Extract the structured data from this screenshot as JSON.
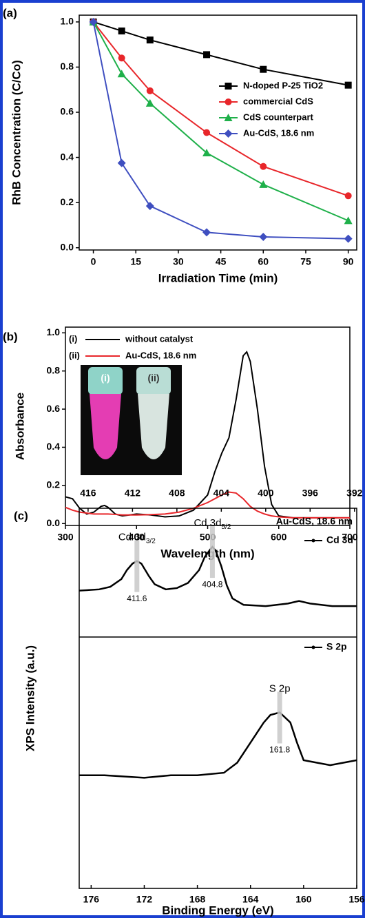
{
  "chart_data": [
    {
      "type": "line",
      "panel_label": "(a)",
      "x_label": "Irradiation Time (min)",
      "y_label": "RhB Concentration (C/Co)",
      "x": [
        0,
        10,
        20,
        40,
        60,
        90
      ],
      "xlim": [
        -5,
        93
      ],
      "xticks": [
        0,
        15,
        30,
        45,
        60,
        75,
        90
      ],
      "ylim": [
        -0.01,
        1.03
      ],
      "yticks": [
        {
          "value": 0,
          "label": "0.0"
        },
        0.2,
        0.4,
        0.6,
        0.8,
        {
          "value": 1,
          "label": "1.0"
        }
      ],
      "legend": "right",
      "series": [
        {
          "name": "N-doped P-25 TiO2",
          "color": "#000000",
          "marker": "square",
          "values": [
            1.0,
            0.96,
            0.92,
            0.855,
            0.79,
            0.72
          ]
        },
        {
          "name": "commercial CdS",
          "color": "#e8262a",
          "marker": "circle",
          "values": [
            1.0,
            0.84,
            0.695,
            0.51,
            0.36,
            0.23
          ]
        },
        {
          "name": "CdS counterpart",
          "color": "#1fb04a",
          "marker": "triangle",
          "values": [
            1.0,
            0.77,
            0.64,
            0.42,
            0.28,
            0.12
          ]
        },
        {
          "name": "Au-CdS, 18.6 nm",
          "color": "#3f4fc0",
          "marker": "diamond",
          "values": [
            1.0,
            0.375,
            0.185,
            0.068,
            0.048,
            0.04
          ]
        }
      ]
    },
    {
      "type": "line",
      "panel_label": "(b)",
      "x_label": "Wavelength (nm)",
      "y_label": "Absorbance",
      "x": [
        300,
        310,
        320,
        330,
        340,
        350,
        355,
        360,
        370,
        380,
        400,
        420,
        440,
        460,
        480,
        500,
        510,
        520,
        530,
        540,
        550,
        555,
        560,
        570,
        580,
        590,
        600,
        620,
        650,
        700
      ],
      "xlim": [
        300,
        700
      ],
      "xticks": [
        300,
        400,
        500,
        600,
        700
      ],
      "ylim": [
        -0.01,
        1.03
      ],
      "yticks": [
        {
          "value": 0,
          "label": "0.0"
        },
        0.2,
        0.4,
        0.6,
        0.8,
        {
          "value": 1,
          "label": "1.0"
        }
      ],
      "legend": "upper left",
      "series": [
        {
          "label": "(i)",
          "name": "without catalyst",
          "color": "#000000",
          "values": [
            0.14,
            0.13,
            0.08,
            0.05,
            0.06,
            0.09,
            0.095,
            0.085,
            0.05,
            0.04,
            0.05,
            0.045,
            0.035,
            0.04,
            0.07,
            0.15,
            0.27,
            0.37,
            0.45,
            0.65,
            0.88,
            0.9,
            0.85,
            0.6,
            0.3,
            0.1,
            0.04,
            0.03,
            0.03,
            0.03
          ]
        },
        {
          "label": "(ii)",
          "name": "Au-CdS, 18.6 nm",
          "color": "#e8262a",
          "values": [
            0.085,
            0.07,
            0.06,
            0.055,
            0.05,
            0.05,
            0.05,
            0.05,
            0.048,
            0.045,
            0.045,
            0.047,
            0.05,
            0.06,
            0.08,
            0.11,
            0.13,
            0.15,
            0.165,
            0.16,
            0.13,
            0.11,
            0.09,
            0.065,
            0.05,
            0.04,
            0.035,
            0.03,
            0.03,
            0.03
          ]
        }
      ]
    },
    {
      "type": "xps",
      "panel_label": "(c)",
      "y_label": "XPS Intensity (a.u.)",
      "annotation": "Au-CdS, 18.6 nm",
      "panels": [
        {
          "name": "Cd 3d",
          "color": "#000000",
          "x_axis": "top",
          "xlim": [
            416.8,
            391.8
          ],
          "xticks": [
            416,
            412,
            408,
            404,
            400,
            396,
            392
          ],
          "ylim": [
            0,
            1
          ],
          "x": [
            416.8,
            415,
            414,
            413,
            412.5,
            412,
            411.6,
            411.2,
            410.5,
            410,
            409,
            408,
            407,
            406,
            405.5,
            405,
            404.8,
            404.5,
            404,
            403.5,
            403,
            402,
            400,
            398,
            397,
            396,
            394,
            391.8
          ],
          "values": [
            0.36,
            0.37,
            0.39,
            0.45,
            0.52,
            0.57,
            0.59,
            0.57,
            0.47,
            0.41,
            0.37,
            0.38,
            0.42,
            0.52,
            0.62,
            0.68,
            0.7,
            0.67,
            0.55,
            0.4,
            0.3,
            0.25,
            0.24,
            0.26,
            0.28,
            0.26,
            0.24,
            0.24
          ],
          "peaks": [
            {
              "label": "Cd 3d",
              "sub": "3/2",
              "value": 411.6
            },
            {
              "label": "Cd 3d",
              "sub": "5/2",
              "value": 404.8
            }
          ]
        },
        {
          "name": "S 2p",
          "color": "#000000",
          "x_axis": "bottom",
          "x_label": "Binding Energy (eV)",
          "xlim": [
            176.9,
            156
          ],
          "xticks": [
            176,
            172,
            168,
            164,
            160,
            156
          ],
          "ylim": [
            0,
            1
          ],
          "x": [
            176.9,
            175,
            172,
            170,
            168,
            166,
            165,
            164,
            163,
            162.5,
            161.8,
            161,
            160.5,
            160,
            159,
            158,
            157,
            156
          ],
          "values": [
            0.45,
            0.45,
            0.44,
            0.45,
            0.45,
            0.46,
            0.5,
            0.58,
            0.66,
            0.69,
            0.7,
            0.66,
            0.58,
            0.51,
            0.5,
            0.49,
            0.5,
            0.51
          ],
          "peaks": [
            {
              "label": "S 2p",
              "value": 161.8
            }
          ]
        }
      ]
    }
  ]
}
